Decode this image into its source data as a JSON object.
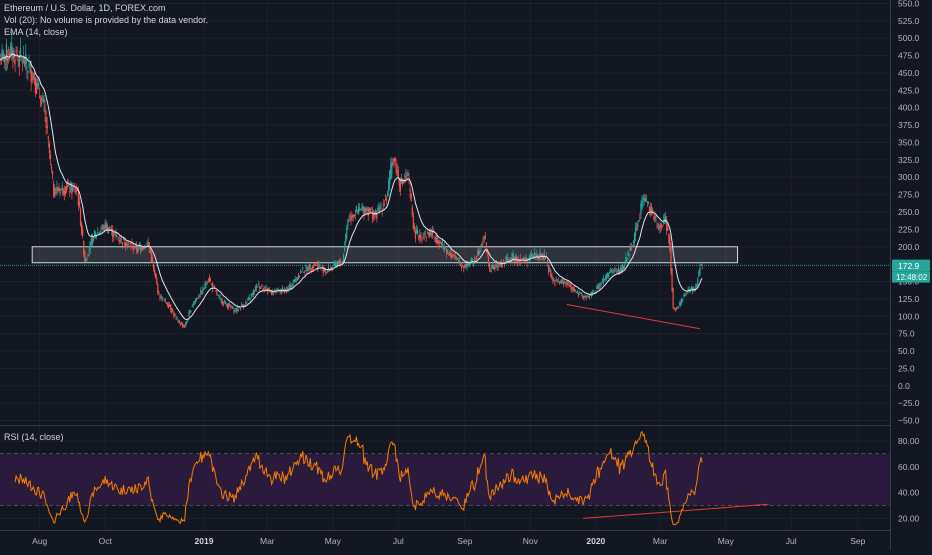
{
  "legend": {
    "symbol_line": "Ethereum / U.S. Dollar, 1D, FOREX.com",
    "volume_line": "Vol (20): No volume is provided by the data vendor.",
    "ema_line": "EMA (14, close)",
    "rsi_line": "RSI (14, close)"
  },
  "price_badge": {
    "price": "172.9",
    "countdown": "12:48:02"
  },
  "colors": {
    "background": "#131722",
    "grid": "#1e222d",
    "axis_text": "#b2b5be",
    "up": "#26a69a",
    "down": "#ef5350",
    "ema": "#e0e3eb",
    "rsi": "#f57c00",
    "rsi_band": "#2a1b3d",
    "last_price": "#26a69a"
  },
  "chart_data": [
    {
      "type": "candlestick",
      "y_ticks": [
        "550.0",
        "525.0",
        "500.0",
        "475.0",
        "450.0",
        "425.0",
        "400.0",
        "375.0",
        "350.0",
        "325.0",
        "300.0",
        "275.0",
        "250.0",
        "225.0",
        "200.0",
        "175.0",
        "150.0",
        "125.0",
        "100.0",
        "75.0",
        "50.0",
        "25.0",
        "0.0",
        "−25.0",
        "−50.0"
      ],
      "y_tick_values": [
        550,
        525,
        500,
        475,
        450,
        425,
        400,
        375,
        350,
        325,
        300,
        275,
        250,
        225,
        200,
        175,
        150,
        125,
        100,
        75,
        50,
        25,
        0,
        -25,
        -50
      ],
      "ylim": [
        -55,
        555
      ],
      "x_ticks": [
        "Aug",
        "Oct",
        "2019",
        "Mar",
        "May",
        "Jul",
        "Sep",
        "Nov",
        "2020",
        "Mar",
        "May",
        "Jul",
        "Sep"
      ],
      "x_tick_dates": [
        "2018-08-01",
        "2018-10-01",
        "2019-01-01",
        "2019-03-01",
        "2019-05-01",
        "2019-07-01",
        "2019-09-01",
        "2019-11-01",
        "2020-01-01",
        "2020-03-01",
        "2020-05-01",
        "2020-07-01",
        "2020-09-01"
      ],
      "date_range": [
        "2018-06-25",
        "2020-10-01"
      ],
      "close_path": [
        [
          "2018-06-25",
          470
        ],
        [
          "2018-07-05",
          480
        ],
        [
          "2018-07-15",
          470
        ],
        [
          "2018-07-25",
          450
        ],
        [
          "2018-08-05",
          400
        ],
        [
          "2018-08-14",
          280
        ],
        [
          "2018-08-25",
          285
        ],
        [
          "2018-09-05",
          280
        ],
        [
          "2018-09-12",
          180
        ],
        [
          "2018-09-20",
          215
        ],
        [
          "2018-10-01",
          230
        ],
        [
          "2018-10-15",
          210
        ],
        [
          "2018-10-31",
          197
        ],
        [
          "2018-11-10",
          205
        ],
        [
          "2018-11-14",
          175
        ],
        [
          "2018-11-20",
          130
        ],
        [
          "2018-11-30",
          115
        ],
        [
          "2018-12-06",
          95
        ],
        [
          "2018-12-14",
          85
        ],
        [
          "2018-12-22",
          120
        ],
        [
          "2018-12-30",
          135
        ],
        [
          "2019-01-05",
          155
        ],
        [
          "2019-01-15",
          125
        ],
        [
          "2019-01-30",
          108
        ],
        [
          "2019-02-10",
          120
        ],
        [
          "2019-02-20",
          145
        ],
        [
          "2019-03-05",
          135
        ],
        [
          "2019-03-20",
          138
        ],
        [
          "2019-04-02",
          165
        ],
        [
          "2019-04-15",
          175
        ],
        [
          "2019-04-25",
          165
        ],
        [
          "2019-05-10",
          180
        ],
        [
          "2019-05-15",
          240
        ],
        [
          "2019-05-22",
          250
        ],
        [
          "2019-06-01",
          255
        ],
        [
          "2019-06-10",
          245
        ],
        [
          "2019-06-20",
          270
        ],
        [
          "2019-06-26",
          330
        ],
        [
          "2019-07-03",
          290
        ],
        [
          "2019-07-10",
          300
        ],
        [
          "2019-07-16",
          220
        ],
        [
          "2019-07-22",
          215
        ],
        [
          "2019-08-01",
          220
        ],
        [
          "2019-08-15",
          195
        ],
        [
          "2019-08-30",
          172
        ],
        [
          "2019-09-10",
          180
        ],
        [
          "2019-09-19",
          215
        ],
        [
          "2019-09-24",
          168
        ],
        [
          "2019-10-05",
          175
        ],
        [
          "2019-10-15",
          185
        ],
        [
          "2019-10-26",
          180
        ],
        [
          "2019-11-05",
          188
        ],
        [
          "2019-11-15",
          185
        ],
        [
          "2019-11-22",
          150
        ],
        [
          "2019-12-05",
          148
        ],
        [
          "2019-12-17",
          130
        ],
        [
          "2019-12-25",
          127
        ],
        [
          "2020-01-05",
          145
        ],
        [
          "2020-01-15",
          165
        ],
        [
          "2020-01-25",
          165
        ],
        [
          "2020-02-05",
          210
        ],
        [
          "2020-02-14",
          270
        ],
        [
          "2020-02-20",
          260
        ],
        [
          "2020-02-28",
          225
        ],
        [
          "2020-03-06",
          240
        ],
        [
          "2020-03-10",
          200
        ],
        [
          "2020-03-13",
          110
        ],
        [
          "2020-03-18",
          115
        ],
        [
          "2020-03-25",
          135
        ],
        [
          "2020-04-03",
          140
        ],
        [
          "2020-04-07",
          172
        ],
        [
          "2020-04-09",
          172.9
        ]
      ],
      "ema_period": 14,
      "annotations": [
        {
          "kind": "rectangle",
          "x": [
            "2018-07-25",
            "2020-05-12"
          ],
          "y": [
            177,
            200
          ]
        },
        {
          "kind": "trend_line",
          "x": [
            "2019-12-05",
            "2020-04-07"
          ],
          "y": [
            117,
            82
          ]
        },
        {
          "kind": "horizontal_line",
          "y": 172.9
        }
      ]
    },
    {
      "type": "line",
      "name": "RSI (14, close)",
      "y_ticks": [
        "80.00",
        "60.00",
        "40.00",
        "20.00"
      ],
      "y_tick_values": [
        80,
        60,
        40,
        20
      ],
      "ylim": [
        11,
        91
      ],
      "bands": [
        70,
        30
      ],
      "trend_line": {
        "x": [
          "2019-12-20",
          "2020-06-10"
        ],
        "y": [
          20,
          31
        ]
      }
    }
  ]
}
